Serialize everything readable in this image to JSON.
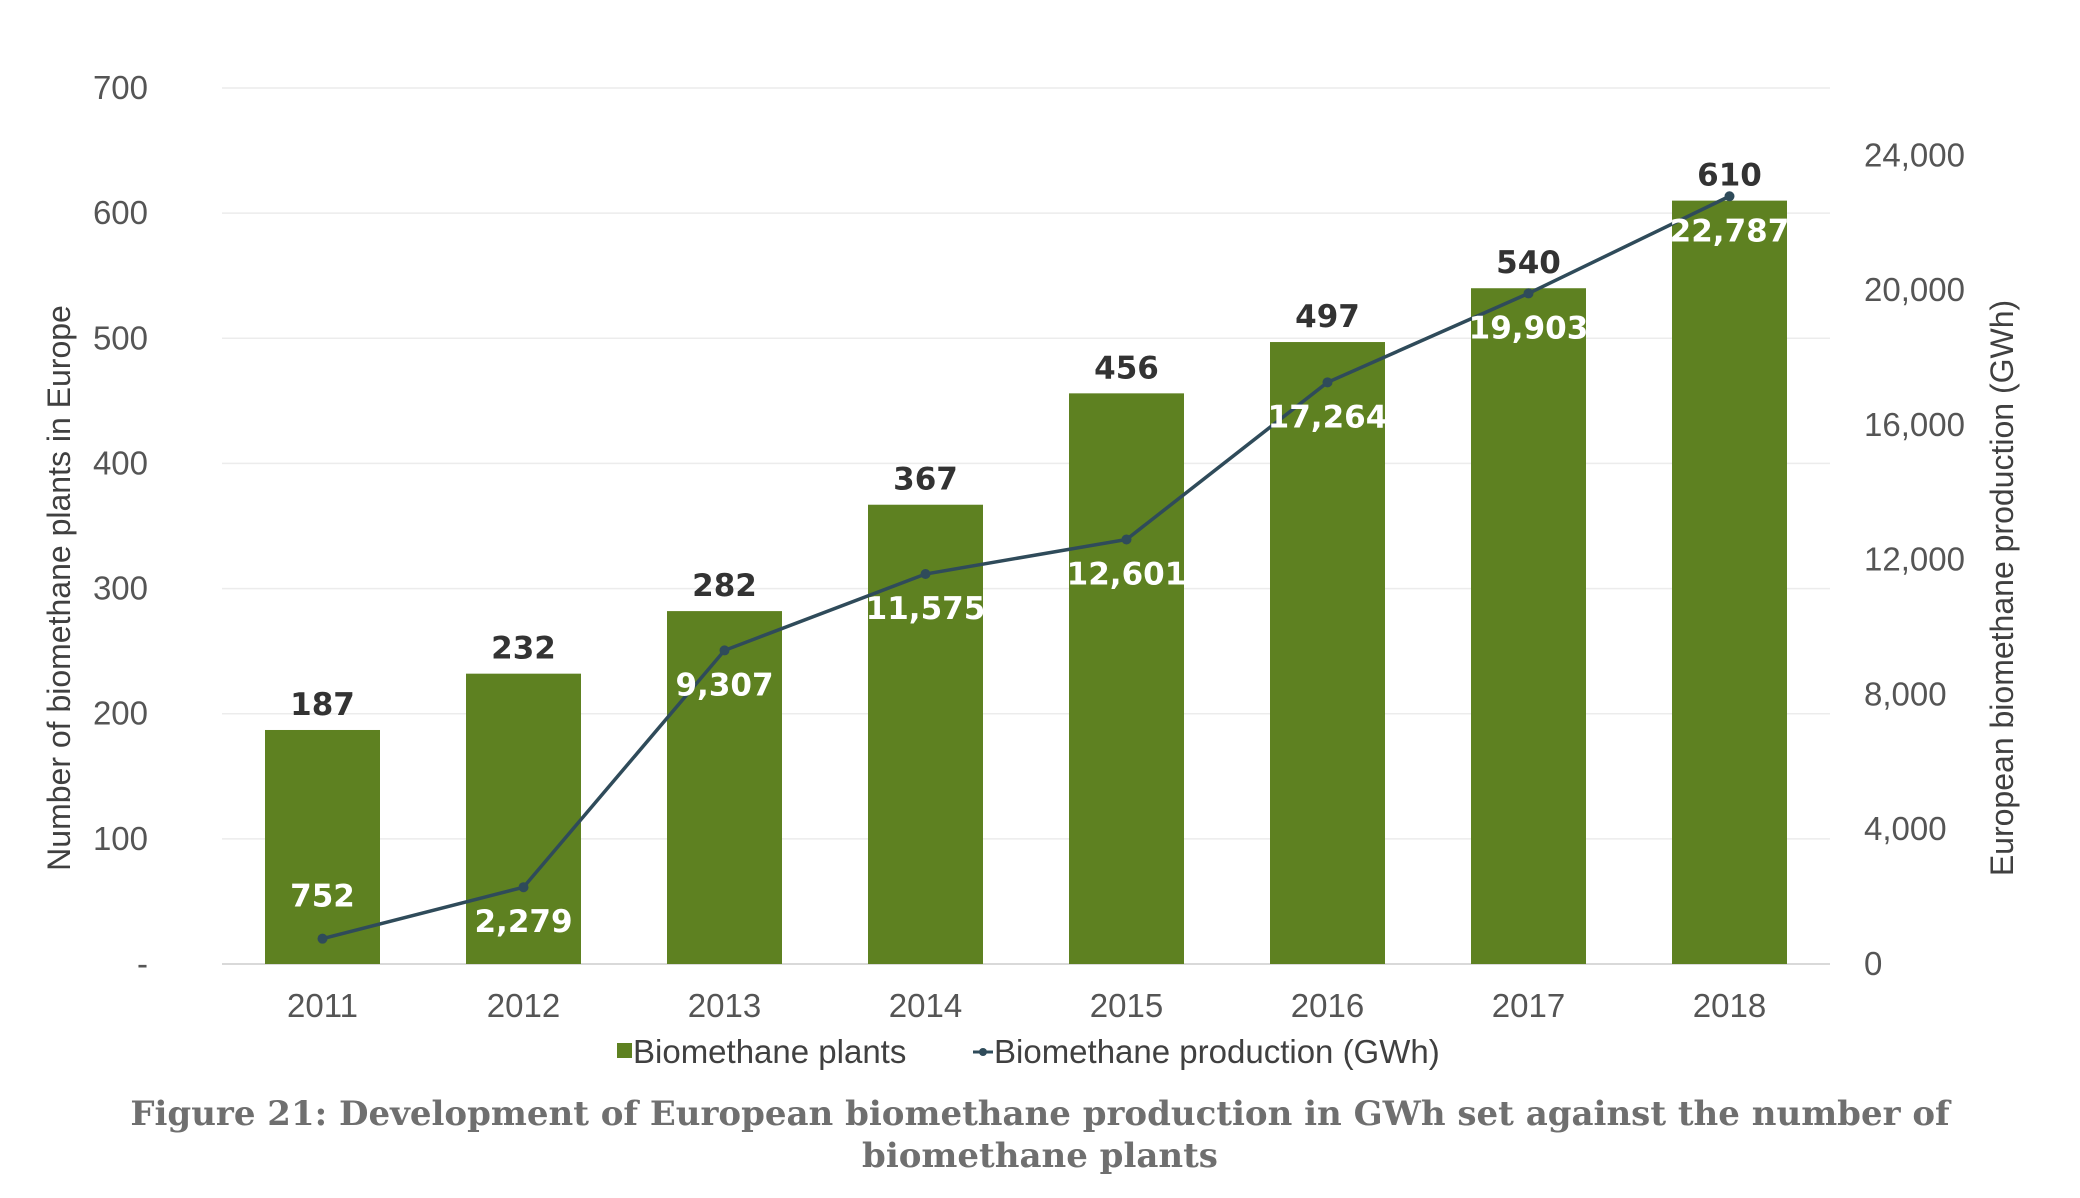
{
  "chart_data": {
    "type": "bar",
    "categories": [
      "2011",
      "2012",
      "2013",
      "2014",
      "2015",
      "2016",
      "2017",
      "2018"
    ],
    "series": [
      {
        "name": "Biomethane plants",
        "type": "bar",
        "axis": "left",
        "values": [
          187,
          232,
          282,
          367,
          456,
          497,
          540,
          610
        ],
        "labels": [
          "187",
          "232",
          "282",
          "367",
          "456",
          "497",
          "540",
          "610"
        ]
      },
      {
        "name": "Biomethane production (GWh)",
        "type": "line",
        "axis": "right",
        "values": [
          752,
          2279,
          9307,
          11575,
          12601,
          17264,
          19903,
          22787
        ],
        "labels": [
          "752",
          "2,279",
          "9,307",
          "11,575",
          "12,601",
          "17,264",
          "19,903",
          "22,787"
        ]
      }
    ],
    "ylabel": "Number of biomethane plants in Europe",
    "y2label": "European biomethane production (GWh)",
    "ylim": [
      0,
      700
    ],
    "y2lim": [
      0,
      26000
    ],
    "yticks": [
      "-",
      "100",
      "200",
      "300",
      "400",
      "500",
      "600",
      "700"
    ],
    "y2ticks": [
      "0",
      "4,000",
      "8,000",
      "12,000",
      "16,000",
      "20,000",
      "24,000"
    ],
    "legend_position": "bottom",
    "grid": "horizontal",
    "colors": {
      "bar": "#5e8121",
      "line": "#2f4b5a"
    }
  },
  "caption": {
    "line1": "Figure 21: Development of European biomethane production in GWh set against the number of",
    "line2": "biomethane plants"
  }
}
